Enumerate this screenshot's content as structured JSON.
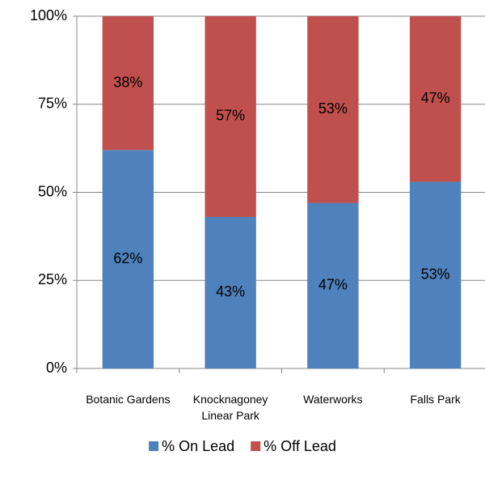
{
  "chart_data": {
    "type": "stacked_bar",
    "categories": [
      "Botanic Gardens",
      "Knocknagoney Linear Park",
      "Waterworks",
      "Falls Park"
    ],
    "series": [
      {
        "name": "% On Lead",
        "color": "#4f81bd",
        "values": [
          62,
          43,
          47,
          53
        ],
        "value_labels": [
          "62%",
          "43%",
          "47%",
          "53%"
        ]
      },
      {
        "name": "% Off Lead",
        "color": "#c0504d",
        "values": [
          38,
          57,
          53,
          47
        ],
        "value_labels": [
          "38%",
          "57%",
          "53%",
          "47%"
        ]
      }
    ],
    "ylim": [
      0,
      100
    ],
    "yticks": [
      {
        "value": 0,
        "label": "0%"
      },
      {
        "value": 25,
        "label": "25%"
      },
      {
        "value": 50,
        "label": "50%"
      },
      {
        "value": 75,
        "label": "75%"
      },
      {
        "value": 100,
        "label": "100%"
      }
    ],
    "grid": true,
    "legend": "bottom"
  }
}
